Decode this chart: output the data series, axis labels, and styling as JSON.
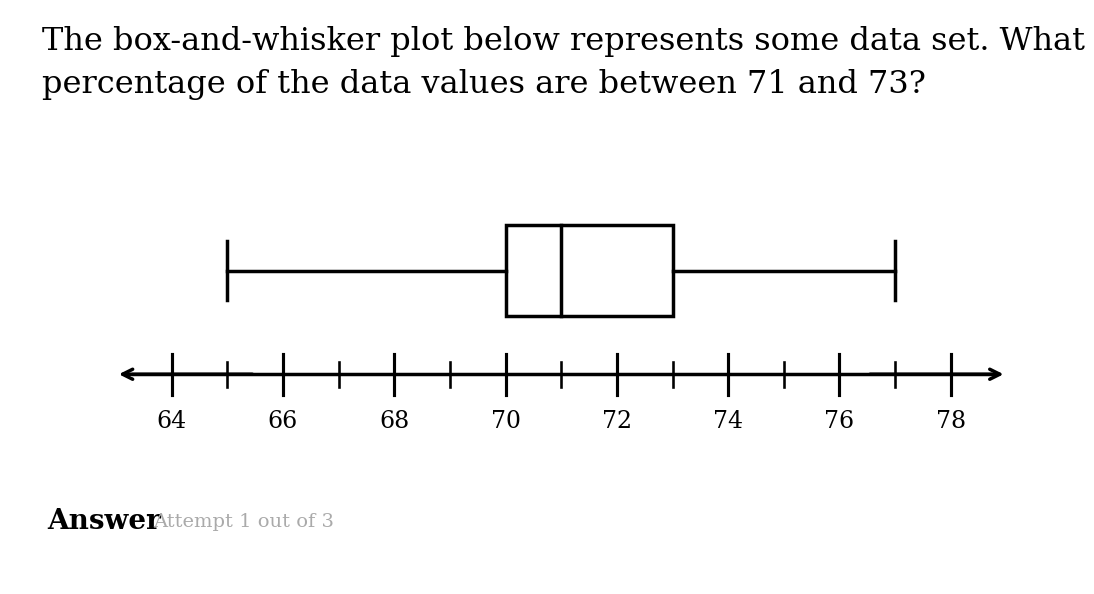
{
  "title_text": "The box-and-whisker plot below represents some data set. What\npercentage of the data values are between 71 and 73?",
  "answer_label": "Answer",
  "answer_sublabel": "Attempt 1 out of 3",
  "whisker_min": 65,
  "whisker_max": 77,
  "q1": 70,
  "median": 71,
  "q3": 73,
  "axis_min": 63,
  "axis_max": 79,
  "axis_ticks": [
    64,
    66,
    68,
    70,
    72,
    74,
    76,
    78
  ],
  "line_color": "#000000",
  "box_face_color": "#ffffff",
  "line_width": 2.5,
  "title_fontsize": 23,
  "tick_fontsize": 17,
  "answer_fontsize": 20,
  "attempt_fontsize": 14,
  "background_color": "#ffffff",
  "bottom_bg_color": "#ebebeb",
  "attempt_color": "#aaaaaa"
}
